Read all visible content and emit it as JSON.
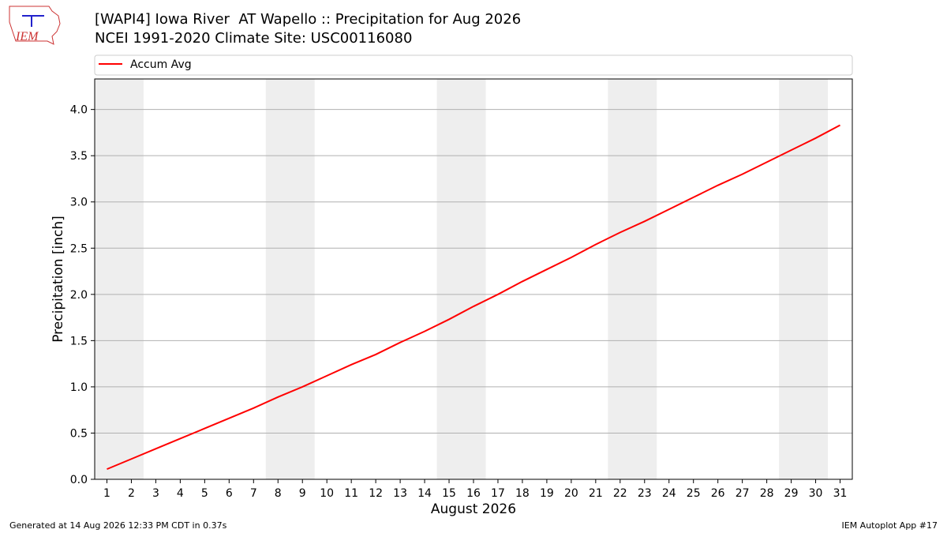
{
  "logo_text": "IEM",
  "chart_data": {
    "type": "line",
    "title": "[WAPI4] Iowa River  AT Wapello :: Precipitation for Aug 2026",
    "subtitle": "NCEI 1991-2020 Climate Site: USC00116080",
    "xlabel": "August 2026",
    "ylabel": "Precipitation [inch]",
    "x": [
      1,
      2,
      3,
      4,
      5,
      6,
      7,
      8,
      9,
      10,
      11,
      12,
      13,
      14,
      15,
      16,
      17,
      18,
      19,
      20,
      21,
      22,
      23,
      24,
      25,
      26,
      27,
      28,
      29,
      30,
      31
    ],
    "series": [
      {
        "name": "Accum Avg",
        "color": "#ff0000",
        "values": [
          0.11,
          0.22,
          0.33,
          0.44,
          0.55,
          0.66,
          0.77,
          0.89,
          1.0,
          1.12,
          1.24,
          1.35,
          1.48,
          1.6,
          1.73,
          1.87,
          2.0,
          2.14,
          2.27,
          2.4,
          2.54,
          2.67,
          2.79,
          2.92,
          3.05,
          3.18,
          3.3,
          3.43,
          3.56,
          3.69,
          3.83
        ]
      }
    ],
    "xlim": [
      0.5,
      31.5
    ],
    "ylim": [
      0,
      4.33
    ],
    "xticks": [
      1,
      2,
      3,
      4,
      5,
      6,
      7,
      8,
      9,
      10,
      11,
      12,
      13,
      14,
      15,
      16,
      17,
      18,
      19,
      20,
      21,
      22,
      23,
      24,
      25,
      26,
      27,
      28,
      29,
      30,
      31
    ],
    "yticks": [
      {
        "value": 0,
        "label": "0.0"
      },
      0.5,
      {
        "value": 1,
        "label": "1.0"
      },
      1.5,
      {
        "value": 2,
        "label": "2.0"
      },
      2.5,
      {
        "value": 3,
        "label": "3.0"
      },
      3.5,
      {
        "value": 4,
        "label": "4.0"
      }
    ],
    "shaded_ranges": [
      [
        0.5,
        2.5
      ],
      [
        7.5,
        9.5
      ],
      [
        14.5,
        16.5
      ],
      [
        21.5,
        23.5
      ],
      [
        28.5,
        30.5
      ]
    ],
    "shade_color": "#eeeeee",
    "grid": true,
    "legend_position": "top"
  },
  "footer": {
    "left": "Generated at 14 Aug 2026 12:33 PM CDT in 0.37s",
    "right": "IEM Autoplot App #17"
  }
}
